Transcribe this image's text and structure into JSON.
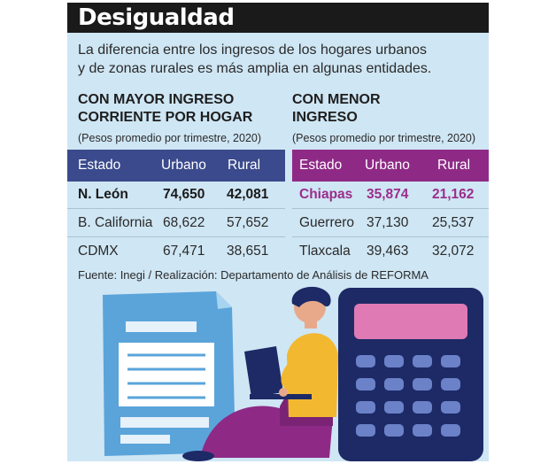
{
  "title": "Desigualdad",
  "intro": [
    "La diferencia entre los ingresos de los hogares urbanos",
    "y de zonas rurales es más amplia en algunas entidades."
  ],
  "source": "Fuente: Inegi / Realización: Departamento de Análisis de REFORMA",
  "colors": {
    "left_header": "#3a4a8c",
    "right_header": "#8e2a86",
    "highlight_text": "#9b2d8b"
  },
  "chart_data": [
    {
      "type": "table",
      "title_lines": [
        "CON MAYOR INGRESO",
        "CORRIENTE POR HOGAR"
      ],
      "subtitle": "(Pesos promedio por trimestre, 2020)",
      "columns": [
        "Estado",
        "Urbano",
        "Rural"
      ],
      "rows": [
        [
          "N. León",
          "74,650",
          "42,081"
        ],
        [
          "B. California",
          "68,622",
          "57,652"
        ],
        [
          "CDMX",
          "67,471",
          "38,651"
        ]
      ],
      "values": {
        "urbano": [
          74650,
          68622,
          67471
        ],
        "rural": [
          42081,
          57652,
          38651
        ]
      }
    },
    {
      "type": "table",
      "title_lines": [
        "CON MENOR",
        "INGRESO"
      ],
      "subtitle": "(Pesos promedio por trimestre, 2020)",
      "columns": [
        "Estado",
        "Urbano",
        "Rural"
      ],
      "rows": [
        [
          "Chiapas",
          "35,874",
          "21,162"
        ],
        [
          "Guerrero",
          "37,130",
          "25,537"
        ],
        [
          "Tlaxcala",
          "39,463",
          "32,072"
        ]
      ],
      "values": {
        "urbano": [
          35874,
          37130,
          39463
        ],
        "rural": [
          21162,
          25537,
          32072
        ]
      }
    }
  ],
  "illustration": {
    "icons": [
      "document-icon",
      "person-with-laptop-icon",
      "calculator-icon"
    ]
  }
}
